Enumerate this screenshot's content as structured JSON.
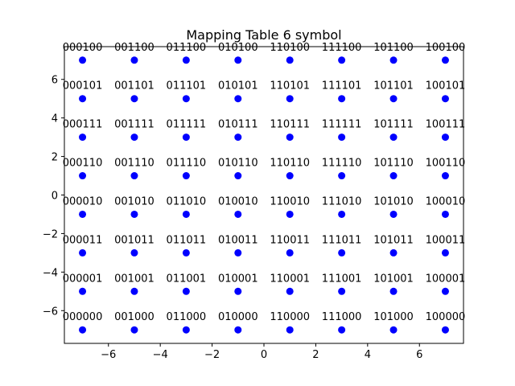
{
  "chart_data": {
    "type": "scatter",
    "title": "Mapping Table 6 symbol",
    "xlabel": "",
    "ylabel": "",
    "xlim": [
      -7.7,
      7.7
    ],
    "ylim": [
      -7.7,
      7.7
    ],
    "xticks": [
      -6,
      -4,
      -2,
      0,
      2,
      4,
      6
    ],
    "yticks": [
      -6,
      -4,
      -2,
      0,
      2,
      4,
      6
    ],
    "xtick_labels": [
      "−6",
      "−4",
      "−2",
      "0",
      "2",
      "4",
      "6"
    ],
    "ytick_labels": [
      "−6",
      "−4",
      "−2",
      "0",
      "2",
      "4",
      "6"
    ],
    "grid": false,
    "point_color": "#0000ff",
    "columns": [
      {
        "x": -7,
        "prefix": "000"
      },
      {
        "x": -5,
        "prefix": "001"
      },
      {
        "x": -3,
        "prefix": "011"
      },
      {
        "x": -1,
        "prefix": "010"
      },
      {
        "x": 1,
        "prefix": "110"
      },
      {
        "x": 3,
        "prefix": "111"
      },
      {
        "x": 5,
        "prefix": "101"
      },
      {
        "x": 7,
        "prefix": "100"
      }
    ],
    "rows": [
      {
        "y": 7,
        "suffix": "100"
      },
      {
        "y": 5,
        "suffix": "101"
      },
      {
        "y": 3,
        "suffix": "111"
      },
      {
        "y": 1,
        "suffix": "110"
      },
      {
        "y": -1,
        "suffix": "010"
      },
      {
        "y": -3,
        "suffix": "011"
      },
      {
        "y": -5,
        "suffix": "001"
      },
      {
        "y": -7,
        "suffix": "000"
      }
    ]
  }
}
